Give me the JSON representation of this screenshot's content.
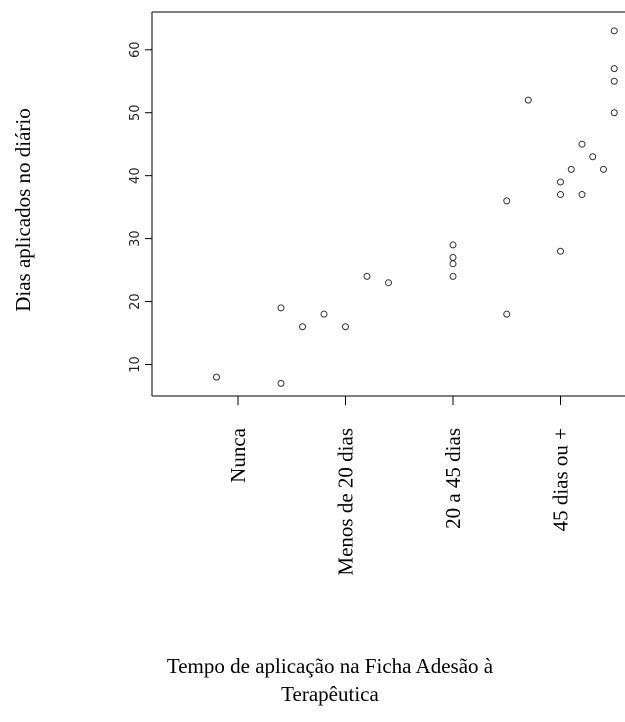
{
  "chart_data": {
    "type": "scatter",
    "title": "",
    "xlabel": "Tempo de aplicação na Ficha Adesão à Terapêutica",
    "ylabel": "Dias aplicados no diário",
    "categories": [
      "Nunca",
      "Menos de 20 dias",
      "20 a 45 dias",
      "45 dias ou +"
    ],
    "xlim": [
      0.2,
      4.6
    ],
    "ylim": [
      5,
      66
    ],
    "yticks": [
      10,
      20,
      30,
      40,
      50,
      60
    ],
    "points": [
      {
        "x": 0.8,
        "y": 8
      },
      {
        "x": 1.4,
        "y": 19
      },
      {
        "x": 1.4,
        "y": 7
      },
      {
        "x": 1.6,
        "y": 16
      },
      {
        "x": 1.8,
        "y": 18
      },
      {
        "x": 2.0,
        "y": 16
      },
      {
        "x": 2.2,
        "y": 24
      },
      {
        "x": 2.4,
        "y": 23
      },
      {
        "x": 3.0,
        "y": 29
      },
      {
        "x": 3.0,
        "y": 27
      },
      {
        "x": 3.0,
        "y": 26
      },
      {
        "x": 3.0,
        "y": 24
      },
      {
        "x": 3.5,
        "y": 36
      },
      {
        "x": 3.5,
        "y": 18
      },
      {
        "x": 3.7,
        "y": 52
      },
      {
        "x": 4.0,
        "y": 39
      },
      {
        "x": 4.0,
        "y": 37
      },
      {
        "x": 4.0,
        "y": 28
      },
      {
        "x": 4.1,
        "y": 41
      },
      {
        "x": 4.2,
        "y": 45
      },
      {
        "x": 4.2,
        "y": 37
      },
      {
        "x": 4.3,
        "y": 43
      },
      {
        "x": 4.4,
        "y": 41
      },
      {
        "x": 4.5,
        "y": 63
      },
      {
        "x": 4.5,
        "y": 57
      },
      {
        "x": 4.5,
        "y": 55
      },
      {
        "x": 4.5,
        "y": 50
      }
    ],
    "grid": false,
    "legend": "none"
  }
}
